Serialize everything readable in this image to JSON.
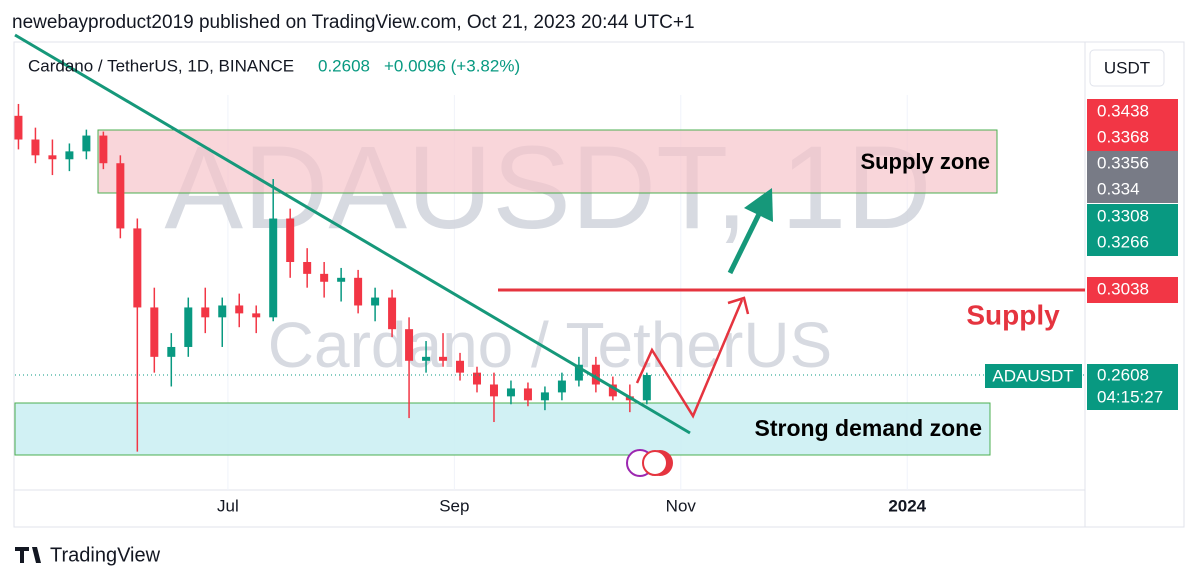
{
  "chart_data": {
    "type": "candlestick",
    "attribution": "newebayproduct2019 published on TradingView.com, Oct 21, 2023 20:44 UTC+1",
    "title": "Cardano / TetherUS, 1D, BINANCE",
    "change": "+0.0096 (+3.82%)",
    "currency": "USDT",
    "watermark": "ADAUSDT, 1D",
    "watermark_sub": "Cardano / TetherUS",
    "symbol_tag": "ADAUSDT",
    "countdown": "04:15:27",
    "annotations": [
      "Supply zone",
      "Supply",
      "Strong demand zone"
    ],
    "price_scale_labels": [
      0.3438,
      0.3368,
      0.3356,
      0.334,
      0.3308,
      0.3266,
      0.3038
    ],
    "brand": "TradingView",
    "up_color": "#089981",
    "down_color": "#f23645",
    "xlim": [
      5.146,
      14.57
    ],
    "ylim": [
      0.2026,
      0.4
    ],
    "xticks": [
      {
        "value": 7,
        "label": "Jul"
      },
      {
        "value": 9,
        "label": "Sep"
      },
      {
        "value": 11,
        "label": "Nov"
      },
      {
        "value": 13,
        "label": "2024"
      }
    ],
    "candles": {
      "x": [
        5.15,
        5.3,
        5.45,
        5.6,
        5.75,
        5.9,
        6.05,
        6.2,
        6.35,
        6.5,
        6.65,
        6.8,
        6.95,
        7.1,
        7.25,
        7.4,
        7.55,
        7.7,
        7.85,
        8.0,
        8.15,
        8.3,
        8.45,
        8.6,
        8.75,
        8.9,
        9.05,
        9.2,
        9.35,
        9.5,
        9.65,
        9.8,
        9.95,
        10.1,
        10.25,
        10.4,
        10.55,
        10.7
      ],
      "open": [
        0.392,
        0.38,
        0.372,
        0.37,
        0.374,
        0.382,
        0.368,
        0.335,
        0.295,
        0.27,
        0.275,
        0.295,
        0.29,
        0.296,
        0.292,
        0.29,
        0.34,
        0.318,
        0.312,
        0.308,
        0.31,
        0.296,
        0.3,
        0.284,
        0.268,
        0.27,
        0.268,
        0.262,
        0.256,
        0.25,
        0.254,
        0.248,
        0.252,
        0.258,
        0.266,
        0.256,
        0.25,
        0.248
      ],
      "high": [
        0.398,
        0.386,
        0.38,
        0.378,
        0.385,
        0.384,
        0.372,
        0.34,
        0.305,
        0.282,
        0.3,
        0.305,
        0.3,
        0.302,
        0.296,
        0.36,
        0.345,
        0.325,
        0.318,
        0.315,
        0.314,
        0.305,
        0.304,
        0.29,
        0.278,
        0.282,
        0.272,
        0.265,
        0.262,
        0.258,
        0.257,
        0.255,
        0.262,
        0.27,
        0.27,
        0.26,
        0.256,
        0.262
      ],
      "low": [
        0.375,
        0.368,
        0.362,
        0.364,
        0.37,
        0.365,
        0.33,
        0.222,
        0.262,
        0.255,
        0.27,
        0.282,
        0.275,
        0.285,
        0.282,
        0.288,
        0.31,
        0.305,
        0.3,
        0.298,
        0.292,
        0.288,
        0.28,
        0.239,
        0.262,
        0.265,
        0.258,
        0.252,
        0.237,
        0.246,
        0.245,
        0.243,
        0.248,
        0.255,
        0.252,
        0.248,
        0.242,
        0.246
      ],
      "close": [
        0.38,
        0.372,
        0.37,
        0.374,
        0.382,
        0.368,
        0.335,
        0.295,
        0.27,
        0.275,
        0.295,
        0.29,
        0.296,
        0.292,
        0.29,
        0.34,
        0.318,
        0.312,
        0.308,
        0.31,
        0.296,
        0.3,
        0.284,
        0.268,
        0.27,
        0.268,
        0.262,
        0.256,
        0.25,
        0.254,
        0.248,
        0.252,
        0.258,
        0.266,
        0.256,
        0.25,
        0.248,
        0.2608
      ]
    }
  }
}
